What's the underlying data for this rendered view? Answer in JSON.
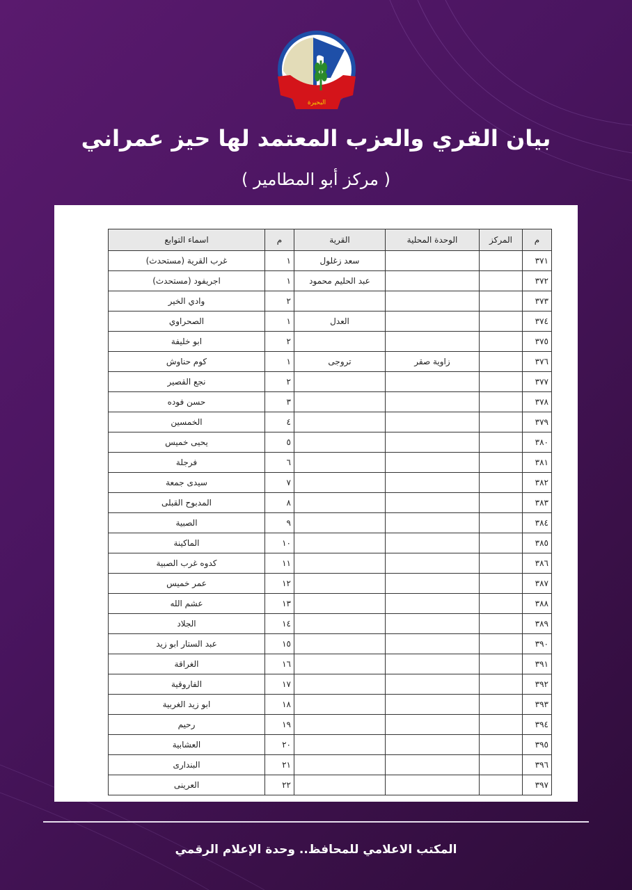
{
  "logo": {
    "text": "البحيرة"
  },
  "title": "بيان القري والعزب المعتمد لها حيز عمراني",
  "subtitle": "( مركز أبو المطامير )",
  "table": {
    "headers": [
      "م",
      "المركز",
      "الوحدة المحلية",
      "القرية",
      "م",
      "اسماء التوابع"
    ],
    "rows": [
      [
        "٣٧١",
        "",
        "",
        "سعد زغلول",
        "١",
        "غرب القرية (مستحدث)"
      ],
      [
        "٣٧٢",
        "",
        "",
        "عبد الحليم محمود",
        "١",
        "اجريفود (مستحدث)"
      ],
      [
        "٣٧٣",
        "",
        "",
        "",
        "٢",
        "وادي الخير"
      ],
      [
        "٣٧٤",
        "",
        "",
        "العدل",
        "١",
        "الصحراوي"
      ],
      [
        "٣٧٥",
        "",
        "",
        "",
        "٢",
        "ابو خليفة"
      ],
      [
        "٣٧٦",
        "",
        "زاوية صقر",
        "تروجى",
        "١",
        "كوم حناوش"
      ],
      [
        "٣٧٧",
        "",
        "",
        "",
        "٢",
        "نجع القصير"
      ],
      [
        "٣٧٨",
        "",
        "",
        "",
        "٣",
        "حسن فوده"
      ],
      [
        "٣٧٩",
        "",
        "",
        "",
        "٤",
        "الخمسين"
      ],
      [
        "٣٨٠",
        "",
        "",
        "",
        "٥",
        "يحيى خميس"
      ],
      [
        "٣٨١",
        "",
        "",
        "",
        "٦",
        "فرجلة"
      ],
      [
        "٣٨٢",
        "",
        "",
        "",
        "٧",
        "سيدى جمعة"
      ],
      [
        "٣٨٣",
        "",
        "",
        "",
        "٨",
        "المدبوح القبلى"
      ],
      [
        "٣٨٤",
        "",
        "",
        "",
        "٩",
        "الصبية"
      ],
      [
        "٣٨٥",
        "",
        "",
        "",
        "١٠",
        "الماكينة"
      ],
      [
        "٣٨٦",
        "",
        "",
        "",
        "١١",
        "كدوه غرب الصبية"
      ],
      [
        "٣٨٧",
        "",
        "",
        "",
        "١٢",
        "عمر خميس"
      ],
      [
        "٣٨٨",
        "",
        "",
        "",
        "١٣",
        "عشم الله"
      ],
      [
        "٣٨٩",
        "",
        "",
        "",
        "١٤",
        "الجلاد"
      ],
      [
        "٣٩٠",
        "",
        "",
        "",
        "١٥",
        "عبد الستار ابو زيد"
      ],
      [
        "٣٩١",
        "",
        "",
        "",
        "١٦",
        "الغراقة"
      ],
      [
        "٣٩٢",
        "",
        "",
        "",
        "١٧",
        "الفاروقية"
      ],
      [
        "٣٩٣",
        "",
        "",
        "",
        "١٨",
        "ابو زيد الغربية"
      ],
      [
        "٣٩٤",
        "",
        "",
        "",
        "١٩",
        "رحيم"
      ],
      [
        "٣٩٥",
        "",
        "",
        "",
        "٢٠",
        "العشابية"
      ],
      [
        "٣٩٦",
        "",
        "",
        "",
        "٢١",
        "البندارى"
      ],
      [
        "٣٩٧",
        "",
        "",
        "",
        "٢٢",
        "العرينى"
      ]
    ]
  },
  "footer": "المكتب الاعلامي للمحافظ.. وحدة الإعلام الرقمي",
  "colors": {
    "background": "#4a1560",
    "paper": "#ffffff",
    "header_fill": "#e8e8e8"
  }
}
